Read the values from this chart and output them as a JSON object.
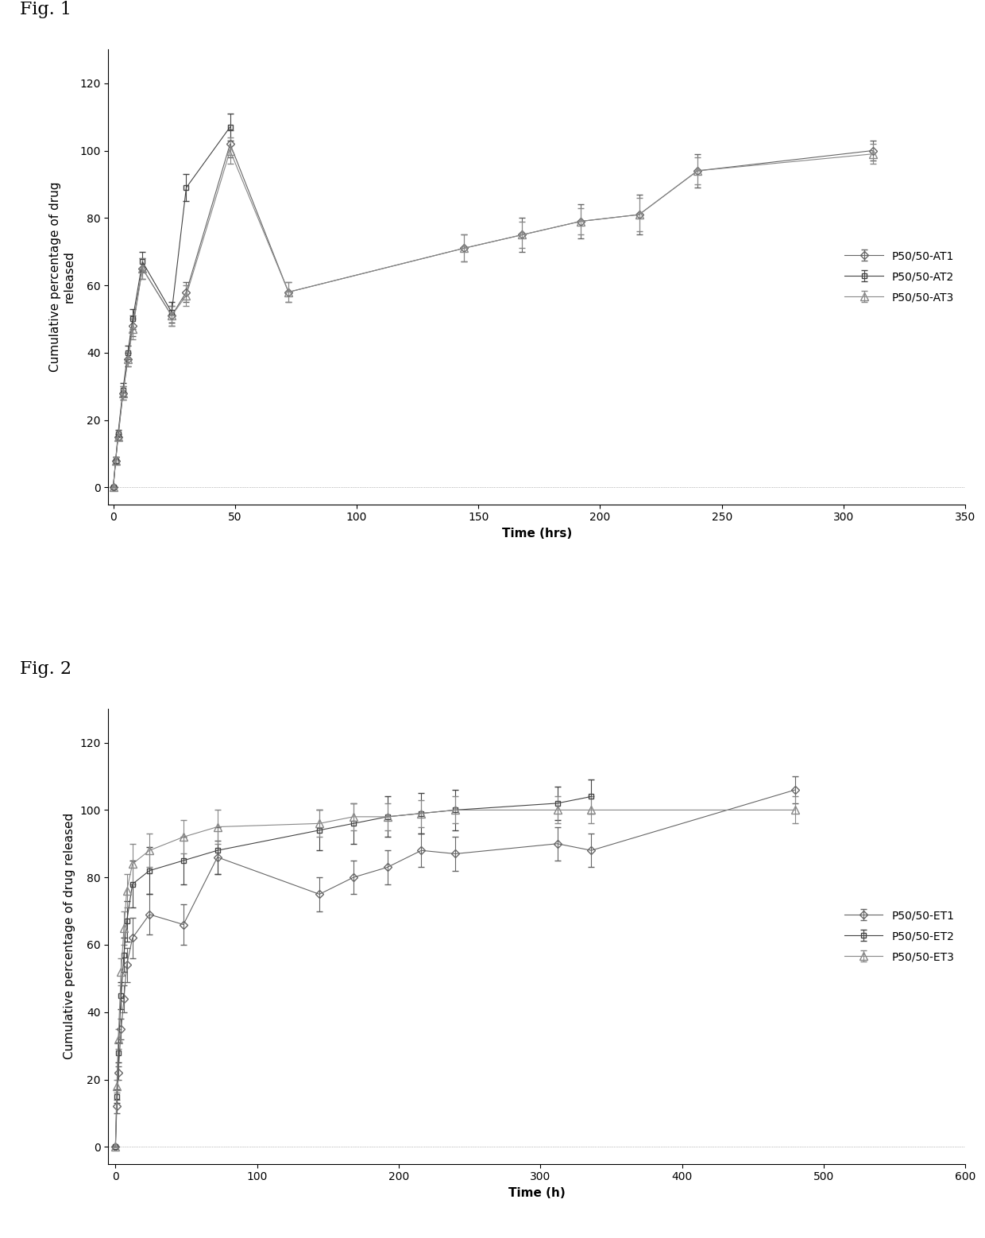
{
  "fig1": {
    "title": "Fig. 1",
    "xlabel": "Time (hrs)",
    "ylabel": "Cumulative percentage of drug\nreleased",
    "xlim": [
      -2,
      350
    ],
    "ylim": [
      -5,
      130
    ],
    "xticks": [
      0,
      50,
      100,
      150,
      200,
      250,
      300,
      350
    ],
    "yticks": [
      0,
      20,
      40,
      60,
      80,
      100,
      120
    ],
    "series": [
      {
        "label": "P50/50-AT1",
        "marker": "D",
        "x": [
          0,
          1,
          2,
          4,
          6,
          8,
          12,
          24,
          30,
          48,
          72,
          144,
          168,
          192,
          216,
          240,
          312
        ],
        "y": [
          0,
          8,
          15,
          28,
          38,
          48,
          65,
          51,
          58,
          102,
          58,
          71,
          75,
          79,
          81,
          94,
          100
        ],
        "yerr": [
          0,
          1,
          1,
          2,
          2,
          3,
          3,
          3,
          3,
          4,
          3,
          4,
          5,
          5,
          6,
          5,
          3
        ],
        "color": "#666666",
        "linestyle": "-",
        "markersize": 5,
        "markevery": 1
      },
      {
        "label": "P50/50-AT2",
        "marker": "s",
        "x": [
          0,
          1,
          2,
          4,
          6,
          8,
          12,
          24,
          30,
          48
        ],
        "y": [
          0,
          8,
          16,
          29,
          40,
          50,
          67,
          52,
          89,
          107
        ],
        "yerr": [
          0,
          1,
          1,
          2,
          2,
          3,
          3,
          3,
          4,
          4
        ],
        "color": "#444444",
        "linestyle": "-",
        "markersize": 5,
        "markevery": 1
      },
      {
        "label": "P50/50-AT3",
        "marker": "^",
        "x": [
          0,
          1,
          2,
          4,
          6,
          8,
          12,
          24,
          30,
          48,
          72,
          144,
          168,
          192,
          216,
          240,
          312
        ],
        "y": [
          0,
          8,
          15,
          28,
          38,
          47,
          65,
          51,
          57,
          100,
          58,
          71,
          75,
          79,
          81,
          94,
          99
        ],
        "yerr": [
          0,
          1,
          1,
          2,
          2,
          3,
          3,
          3,
          3,
          4,
          3,
          4,
          4,
          4,
          5,
          4,
          3
        ],
        "color": "#888888",
        "linestyle": "-",
        "markersize": 7,
        "markevery": 1
      }
    ]
  },
  "fig2": {
    "title": "Fig. 2",
    "xlabel": "Time (h)",
    "ylabel": "Cumulative percentage of drug released",
    "xlim": [
      -5,
      600
    ],
    "ylim": [
      -5,
      130
    ],
    "xticks": [
      0,
      100,
      200,
      300,
      400,
      500,
      600
    ],
    "yticks": [
      0,
      20,
      40,
      60,
      80,
      100,
      120
    ],
    "series": [
      {
        "label": "P50/50-ET1",
        "marker": "D",
        "x": [
          0,
          1,
          2,
          4,
          6,
          8,
          12,
          24,
          48,
          72,
          144,
          168,
          192,
          216,
          240,
          312,
          336,
          480
        ],
        "y": [
          0,
          12,
          22,
          35,
          44,
          54,
          62,
          69,
          66,
          86,
          75,
          80,
          83,
          88,
          87,
          90,
          88,
          106
        ],
        "yerr": [
          0,
          2,
          2,
          3,
          4,
          5,
          6,
          6,
          6,
          5,
          5,
          5,
          5,
          5,
          5,
          5,
          5,
          4
        ],
        "color": "#666666",
        "linestyle": "-",
        "markersize": 5,
        "markevery": 1
      },
      {
        "label": "P50/50-ET2",
        "marker": "s",
        "x": [
          0,
          1,
          2,
          4,
          6,
          8,
          12,
          24,
          48,
          72,
          144,
          168,
          192,
          216,
          240,
          312,
          336
        ],
        "y": [
          0,
          15,
          28,
          45,
          57,
          67,
          78,
          82,
          85,
          88,
          94,
          96,
          98,
          99,
          100,
          102,
          104
        ],
        "yerr": [
          0,
          2,
          3,
          4,
          5,
          6,
          7,
          7,
          7,
          7,
          6,
          6,
          6,
          6,
          6,
          5,
          5
        ],
        "color": "#444444",
        "linestyle": "-",
        "markersize": 5,
        "markevery": 1
      },
      {
        "label": "P50/50-ET3",
        "marker": "^",
        "x": [
          0,
          1,
          2,
          4,
          6,
          8,
          12,
          24,
          48,
          72,
          144,
          168,
          192,
          216,
          240,
          312,
          336,
          480
        ],
        "y": [
          0,
          18,
          32,
          52,
          65,
          76,
          84,
          88,
          92,
          95,
          96,
          98,
          98,
          99,
          100,
          100,
          100,
          100
        ],
        "yerr": [
          0,
          2,
          3,
          4,
          5,
          5,
          6,
          5,
          5,
          5,
          4,
          4,
          4,
          4,
          4,
          4,
          4,
          4
        ],
        "color": "#888888",
        "linestyle": "-",
        "markersize": 7,
        "markevery": 1
      }
    ]
  },
  "background_color": "#ffffff",
  "text_color": "#000000",
  "fig_label_fontsize": 16,
  "axis_label_fontsize": 11,
  "tick_fontsize": 10,
  "legend_fontsize": 10
}
